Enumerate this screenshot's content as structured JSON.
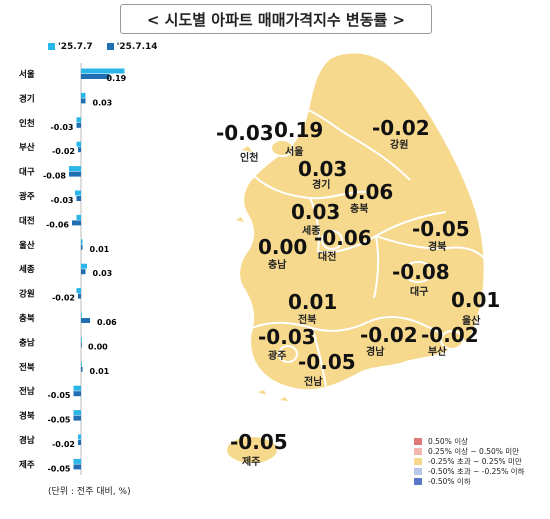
{
  "header": {
    "title": "< 시도별 아파트 매매가격지수 변동률 >"
  },
  "legend": {
    "series_prev": "'25.7.7",
    "series_curr": "'25.7.14",
    "color_prev": "#29b6e8",
    "color_curr": "#1f6fb2"
  },
  "unit_note": "(단위 : 전주 대비, %)",
  "chart_data": {
    "type": "bar",
    "orientation": "horizontal",
    "categories": [
      "서울",
      "경기",
      "인천",
      "부산",
      "대구",
      "광주",
      "대전",
      "울산",
      "세종",
      "강원",
      "충북",
      "충남",
      "전북",
      "전남",
      "경북",
      "경남",
      "제주"
    ],
    "series": [
      {
        "name": "'25.7.7",
        "values": [
          0.29,
          0.03,
          -0.03,
          -0.03,
          -0.08,
          -0.04,
          -0.03,
          0.01,
          0.04,
          -0.03,
          0.0,
          0.0,
          0.0,
          -0.05,
          -0.05,
          -0.02,
          -0.05
        ]
      },
      {
        "name": "'25.7.14",
        "values": [
          0.19,
          0.03,
          -0.03,
          -0.02,
          -0.08,
          -0.03,
          -0.06,
          0.01,
          0.03,
          -0.02,
          0.06,
          0.0,
          0.01,
          -0.05,
          -0.05,
          -0.02,
          -0.05
        ]
      }
    ],
    "labels_curr": [
      "0.19",
      "0.03",
      "-0.03",
      "-0.02",
      "-0.08",
      "-0.03",
      "-0.06",
      "0.01",
      "0.03",
      "-0.02",
      "0.06",
      "0.00",
      "0.01",
      "-0.05",
      "-0.05",
      "-0.02",
      "-0.05"
    ]
  },
  "map": {
    "regions": [
      {
        "name": "서울",
        "value": "0.19"
      },
      {
        "name": "인천",
        "value": "-0.03"
      },
      {
        "name": "경기",
        "value": "0.03"
      },
      {
        "name": "강원",
        "value": "-0.02"
      },
      {
        "name": "충북",
        "value": "0.06"
      },
      {
        "name": "세종",
        "value": "0.03"
      },
      {
        "name": "대전",
        "value": "-0.06"
      },
      {
        "name": "충남",
        "value": "0.00"
      },
      {
        "name": "경북",
        "value": "-0.05"
      },
      {
        "name": "대구",
        "value": "-0.08"
      },
      {
        "name": "전북",
        "value": "0.01"
      },
      {
        "name": "울산",
        "value": "0.01"
      },
      {
        "name": "광주",
        "value": "-0.03"
      },
      {
        "name": "경남",
        "value": "-0.02"
      },
      {
        "name": "부산",
        "value": "-0.02"
      },
      {
        "name": "전남",
        "value": "-0.05"
      },
      {
        "name": "제주",
        "value": "-0.05"
      }
    ],
    "fill_color": "#f6d98c",
    "legend": [
      {
        "label": "0.50% 이상",
        "color": "#e07a7a"
      },
      {
        "label": "0.25% 이상 ~ 0.50% 미만",
        "color": "#f2b5b0"
      },
      {
        "label": "-0.25% 초과 ~ 0.25% 미만",
        "color": "#f6d98c"
      },
      {
        "label": "-0.50% 초과 ~ -0.25% 이하",
        "color": "#b8c7e8"
      },
      {
        "label": "-0.50% 이하",
        "color": "#5a78c8"
      }
    ]
  }
}
